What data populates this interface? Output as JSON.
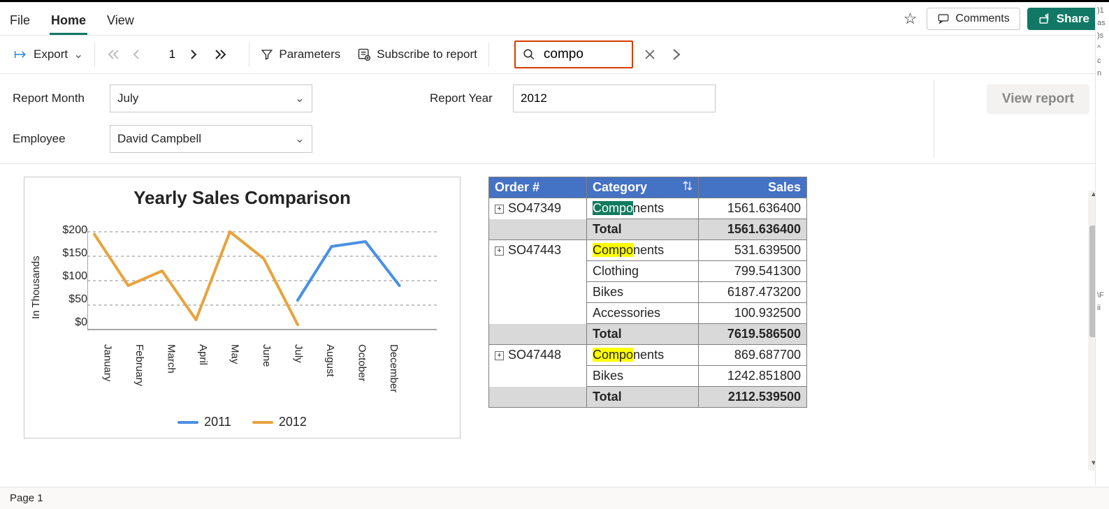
{
  "menu": {
    "tabs": [
      "File",
      "Home",
      "View"
    ],
    "active_tab_index": 1,
    "comments_label": "Comments",
    "share_label": "Share"
  },
  "toolbar": {
    "export_label": "Export",
    "page_current": "1",
    "parameters_label": "Parameters",
    "subscribe_label": "Subscribe to report",
    "search_value": "compo",
    "search_highlight_color": "#d83b01"
  },
  "params": {
    "report_month_label": "Report Month",
    "report_month_value": "July",
    "report_year_label": "Report Year",
    "report_year_value": "2012",
    "employee_label": "Employee",
    "employee_value": "David Campbell",
    "view_report_label": "View report"
  },
  "chart": {
    "title": "Yearly Sales Comparison",
    "type": "line",
    "y_axis_label": "In Thousands",
    "y_ticks": [
      "$200",
      "$150",
      "$100",
      "$50",
      "$0"
    ],
    "ylim": [
      0,
      200
    ],
    "x_categories": [
      "January",
      "February",
      "March",
      "April",
      "May",
      "June",
      "July",
      "August",
      "October",
      "December"
    ],
    "series": [
      {
        "name": "2011",
        "color": "#4a90e2",
        "line_width": 4,
        "values": [
          null,
          null,
          null,
          null,
          null,
          null,
          60,
          170,
          180,
          90
        ]
      },
      {
        "name": "2012",
        "color": "#e8a33d",
        "line_width": 4,
        "values": [
          195,
          90,
          120,
          20,
          200,
          145,
          10,
          null,
          null,
          null
        ]
      }
    ],
    "grid_color": "#888888",
    "grid_dash": "4,4",
    "background_color": "#ffffff"
  },
  "table": {
    "columns": [
      "Order #",
      "Category",
      "Sales"
    ],
    "header_bg": "#4472c4",
    "header_fg": "#ffffff",
    "highlight_term": "Compo",
    "rows": [
      {
        "order": "SO47349",
        "category": "Components",
        "sales": "1561.636400",
        "hl": "green",
        "first": true
      },
      {
        "order": "",
        "category": "Total",
        "sales": "1561.636400",
        "total": true
      },
      {
        "order": "SO47443",
        "category": "Components",
        "sales": "531.639500",
        "hl": "yellow",
        "first": true
      },
      {
        "order": "",
        "category": "Clothing",
        "sales": "799.541300"
      },
      {
        "order": "",
        "category": "Bikes",
        "sales": "6187.473200"
      },
      {
        "order": "",
        "category": "Accessories",
        "sales": "100.932500"
      },
      {
        "order": "",
        "category": "Total",
        "sales": "7619.586500",
        "total": true
      },
      {
        "order": "SO47448",
        "category": "Components",
        "sales": "869.687700",
        "hl": "yellow",
        "first": true
      },
      {
        "order": "",
        "category": "Bikes",
        "sales": "1242.851800"
      },
      {
        "order": "",
        "category": "Total",
        "sales": "2112.539500",
        "total": true
      }
    ]
  },
  "footer": {
    "page_label": "Page 1"
  }
}
